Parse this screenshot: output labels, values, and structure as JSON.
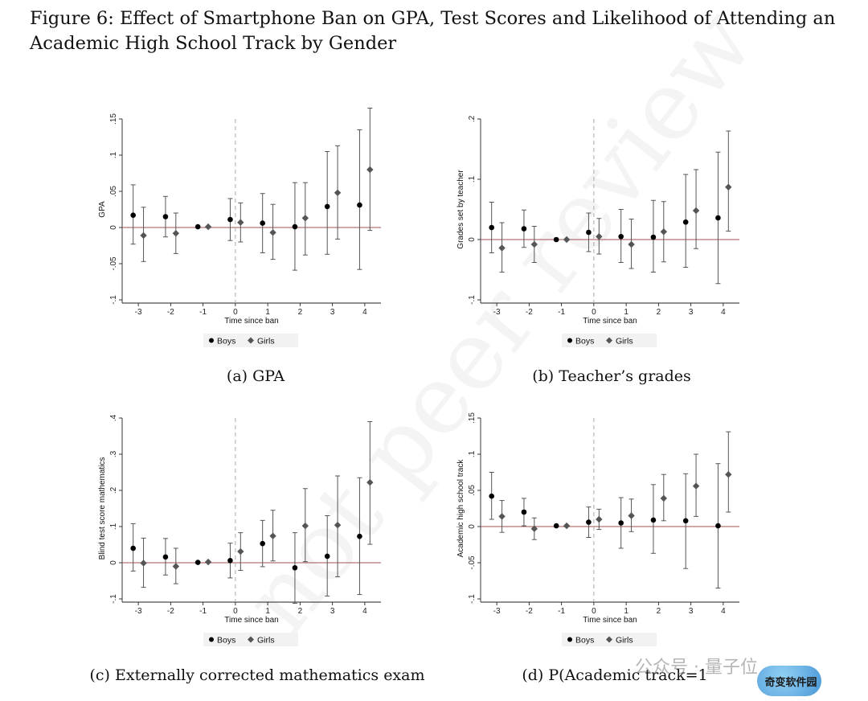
{
  "figure": {
    "caption_line1": "Figure 6: Effect of Smartphone Ban on GPA, Test Scores and Likelihood of Attending an",
    "caption_line2": "Academic High School Track by Gender",
    "watermark": "not peer review",
    "overlay_badge": "奇变软件园",
    "overlay_text": "公众号 · 量子位"
  },
  "colors": {
    "boys": "#000000",
    "girls": "#555555",
    "ci": "#555555",
    "zero_line": "#a05050",
    "ban_line": "#aaaaaa"
  },
  "chart_data": [
    {
      "type": "scatter",
      "subcaption": "(a) GPA",
      "xlabel": "Time since ban",
      "ylabel": "GPA",
      "ylim": [
        -0.1,
        0.15
      ],
      "yticks": [
        -0.1,
        -0.05,
        0,
        0.05,
        0.1,
        0.15
      ],
      "ytick_labels": [
        "-.1",
        "-.05",
        "0",
        ".05",
        ".1",
        ".15"
      ],
      "xlim": [
        -3.5,
        4.5
      ],
      "xticks": [
        -3,
        -2,
        -1,
        0,
        1,
        2,
        3,
        4
      ],
      "xtick_labels": [
        "-3",
        "-2",
        "-1",
        "0",
        "1",
        "2",
        "3",
        "4"
      ],
      "legend": [
        "Boys",
        "Girls"
      ],
      "series": [
        {
          "name": "Boys",
          "marker": "circle",
          "x": [
            -3,
            -2,
            -1,
            0,
            1,
            2,
            3,
            4
          ],
          "y": [
            0.017,
            0.015,
            0.001,
            0.011,
            0.006,
            0.001,
            0.029,
            0.031
          ],
          "ci_low": [
            -0.023,
            -0.013,
            0.001,
            -0.018,
            -0.035,
            -0.059,
            -0.037,
            -0.058
          ],
          "ci_high": [
            0.059,
            0.043,
            0.001,
            0.04,
            0.047,
            0.062,
            0.105,
            0.135
          ]
        },
        {
          "name": "Girls",
          "marker": "diamond",
          "x": [
            -3,
            -2,
            -1,
            0,
            1,
            2,
            3,
            4
          ],
          "y": [
            -0.011,
            -0.008,
            0.001,
            0.007,
            -0.007,
            0.013,
            0.048,
            0.08
          ],
          "ci_low": [
            -0.047,
            -0.036,
            0.001,
            -0.02,
            -0.044,
            -0.038,
            -0.016,
            -0.004
          ],
          "ci_high": [
            0.028,
            0.02,
            0.001,
            0.034,
            0.032,
            0.062,
            0.113,
            0.165
          ]
        }
      ]
    },
    {
      "type": "scatter",
      "subcaption": "(b) Teacher’s grades",
      "xlabel": "Time since ban",
      "ylabel": "Grades set by teacher",
      "ylim": [
        -0.1,
        0.2
      ],
      "yticks": [
        -0.1,
        0,
        0.1,
        0.2
      ],
      "ytick_labels": [
        "-.1",
        "0",
        ".1",
        ".2"
      ],
      "xlim": [
        -3.5,
        4.5
      ],
      "xticks": [
        -3,
        -2,
        -1,
        0,
        1,
        2,
        3,
        4
      ],
      "xtick_labels": [
        "-3",
        "-2",
        "-1",
        "0",
        "1",
        "2",
        "3",
        "4"
      ],
      "legend": [
        "Boys",
        "Girls"
      ],
      "series": [
        {
          "name": "Boys",
          "marker": "circle",
          "x": [
            -3,
            -2,
            -1,
            0,
            1,
            2,
            3,
            4
          ],
          "y": [
            0.02,
            0.018,
            0.0,
            0.012,
            0.005,
            0.004,
            0.029,
            0.036
          ],
          "ci_low": [
            -0.022,
            -0.013,
            0.0,
            -0.02,
            -0.038,
            -0.054,
            -0.046,
            -0.073
          ],
          "ci_high": [
            0.062,
            0.049,
            0.0,
            0.044,
            0.05,
            0.065,
            0.108,
            0.145
          ]
        },
        {
          "name": "Girls",
          "marker": "diamond",
          "x": [
            -3,
            -2,
            -1,
            0,
            1,
            2,
            3,
            4
          ],
          "y": [
            -0.014,
            -0.008,
            0.0,
            0.005,
            -0.008,
            0.013,
            0.048,
            0.087
          ],
          "ci_low": [
            -0.054,
            -0.038,
            0.0,
            -0.024,
            -0.048,
            -0.037,
            -0.015,
            0.014
          ],
          "ci_high": [
            0.028,
            0.022,
            0.0,
            0.035,
            0.034,
            0.063,
            0.116,
            0.18
          ]
        }
      ]
    },
    {
      "type": "scatter",
      "subcaption": "(c) Externally corrected mathematics exam",
      "xlabel": "Time since ban",
      "ylabel": "Blind test score mathematics",
      "ylim": [
        -0.1,
        0.4
      ],
      "yticks": [
        -0.1,
        0,
        0.1,
        0.2,
        0.3,
        0.4
      ],
      "ytick_labels": [
        "-.1",
        "0",
        ".1",
        ".2",
        ".3",
        ".4"
      ],
      "xlim": [
        -3.5,
        4.5
      ],
      "xticks": [
        -3,
        -2,
        -1,
        0,
        1,
        2,
        3,
        4
      ],
      "xtick_labels": [
        "-3",
        "-2",
        "-1",
        "0",
        "1",
        "2",
        "3",
        "4"
      ],
      "legend": [
        "Boys",
        "Girls"
      ],
      "series": [
        {
          "name": "Boys",
          "marker": "circle",
          "x": [
            -3,
            -2,
            -1,
            0,
            1,
            2,
            3,
            4
          ],
          "y": [
            0.04,
            0.016,
            0.001,
            0.006,
            0.053,
            -0.014,
            0.018,
            0.073
          ],
          "ci_low": [
            -0.023,
            -0.034,
            0.001,
            -0.042,
            -0.011,
            -0.112,
            -0.092,
            -0.088
          ],
          "ci_high": [
            0.108,
            0.067,
            0.001,
            0.054,
            0.117,
            0.083,
            0.13,
            0.235
          ]
        },
        {
          "name": "Girls",
          "marker": "diamond",
          "x": [
            -3,
            -2,
            -1,
            0,
            1,
            2,
            3,
            4
          ],
          "y": [
            -0.001,
            -0.01,
            0.002,
            0.031,
            0.074,
            0.102,
            0.104,
            0.222
          ],
          "ci_low": [
            -0.068,
            -0.058,
            0.002,
            -0.021,
            0.005,
            0.003,
            -0.039,
            0.051
          ],
          "ci_high": [
            0.068,
            0.04,
            0.002,
            0.083,
            0.145,
            0.205,
            0.24,
            0.39
          ]
        }
      ]
    },
    {
      "type": "scatter",
      "subcaption": "(d) P(Academic track=1",
      "xlabel": "Time since ban",
      "ylabel": "Academic high school track",
      "ylim": [
        -0.1,
        0.15
      ],
      "yticks": [
        -0.1,
        -0.05,
        0,
        0.05,
        0.1,
        0.15
      ],
      "ytick_labels": [
        "-.1",
        "-.05",
        "0",
        ".05",
        ".1",
        ".15"
      ],
      "xlim": [
        -3.5,
        4.5
      ],
      "xticks": [
        -3,
        -2,
        -1,
        0,
        1,
        2,
        3,
        4
      ],
      "xtick_labels": [
        "-3",
        "-2",
        "-1",
        "0",
        "1",
        "2",
        "3",
        "4"
      ],
      "legend": [
        "Boys",
        "Girls"
      ],
      "series": [
        {
          "name": "Boys",
          "marker": "circle",
          "x": [
            -3,
            -2,
            -1,
            0,
            1,
            2,
            3,
            4
          ],
          "y": [
            0.042,
            0.02,
            0.001,
            0.006,
            0.005,
            0.009,
            0.008,
            0.001
          ],
          "ci_low": [
            0.01,
            0.001,
            0.001,
            -0.015,
            -0.03,
            -0.037,
            -0.058,
            -0.085
          ],
          "ci_high": [
            0.075,
            0.039,
            0.001,
            0.027,
            0.04,
            0.058,
            0.073,
            0.087
          ]
        },
        {
          "name": "Girls",
          "marker": "diamond",
          "x": [
            -3,
            -2,
            -1,
            0,
            1,
            2,
            3,
            4
          ],
          "y": [
            0.014,
            -0.003,
            0.001,
            0.01,
            0.015,
            0.039,
            0.056,
            0.072
          ],
          "ci_low": [
            -0.008,
            -0.018,
            0.001,
            -0.004,
            -0.007,
            0.008,
            0.014,
            0.02
          ],
          "ci_high": [
            0.036,
            0.012,
            0.001,
            0.024,
            0.038,
            0.072,
            0.1,
            0.131
          ]
        }
      ]
    }
  ]
}
